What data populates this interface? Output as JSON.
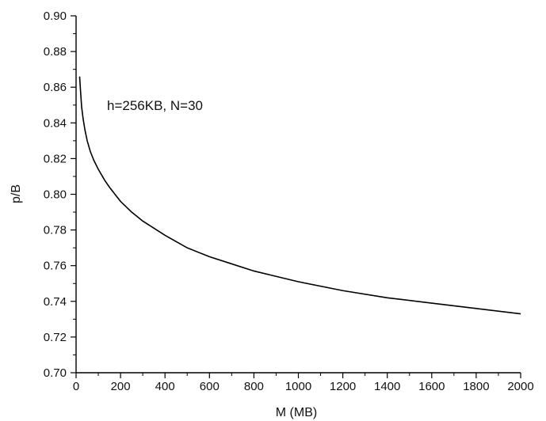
{
  "chart_data": {
    "type": "line",
    "title": "",
    "xlabel": "M (MB)",
    "ylabel": "p/B",
    "xlim": [
      0,
      2000
    ],
    "ylim": [
      0.7,
      0.9
    ],
    "x_ticks": [
      "0",
      "200",
      "400",
      "600",
      "800",
      "1000",
      "1200",
      "1400",
      "1600",
      "1800",
      "2000"
    ],
    "y_ticks": [
      "0.70",
      "0.72",
      "0.74",
      "0.76",
      "0.78",
      "0.80",
      "0.82",
      "0.84",
      "0.86",
      "0.88",
      "0.90"
    ],
    "annotation": "h=256KB, N=30",
    "grid": false,
    "legend": "none",
    "line_color": "#000000",
    "series": [
      {
        "x": [
          16,
          20,
          25,
          32,
          40,
          50,
          64,
          80,
          100,
          128,
          150,
          200,
          250,
          300,
          400,
          500,
          600,
          700,
          800,
          900,
          1000,
          1200,
          1400,
          1600,
          1800,
          2000
        ],
        "values": [
          0.866,
          0.858,
          0.849,
          0.842,
          0.836,
          0.83,
          0.824,
          0.819,
          0.814,
          0.808,
          0.804,
          0.796,
          0.79,
          0.785,
          0.777,
          0.77,
          0.765,
          0.761,
          0.757,
          0.754,
          0.751,
          0.746,
          0.742,
          0.739,
          0.736,
          0.733
        ]
      }
    ]
  }
}
